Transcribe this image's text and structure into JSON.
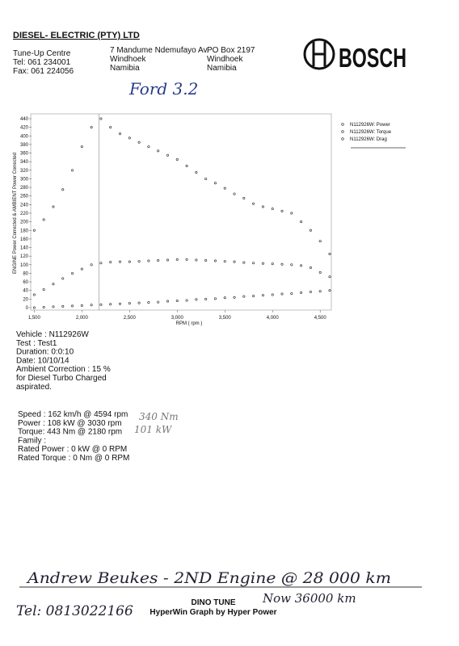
{
  "header": {
    "company": "DIESEL- ELECTRIC (PTY) LTD",
    "branch": "Tune-Up Centre",
    "tel": "Tel:  061 234001",
    "fax": "Fax: 061 224056",
    "address": [
      "7 Mandume Ndemufayo Av.",
      "Windhoek",
      "Namibia"
    ],
    "po_box": [
      "PO Box 2197",
      "Windhoek",
      "Namibia"
    ],
    "brand": "BOSCH"
  },
  "handwritten_title": "Ford 3.2",
  "chart_data": {
    "type": "scatter",
    "x_label": "RPM ( rpm )",
    "y_label": "ENGINE Power Corrected & AMBIENT Power Corrected",
    "x": [
      1500,
      1600,
      1700,
      1800,
      1900,
      2000,
      2100,
      2200,
      2300,
      2400,
      2500,
      2600,
      2700,
      2800,
      2900,
      3000,
      3100,
      3200,
      3300,
      3400,
      3500,
      3600,
      3700,
      3800,
      3900,
      4000,
      4100,
      4200,
      4300,
      4400,
      4500,
      4600
    ],
    "series": [
      {
        "name": "N112926W: Power",
        "color": "#222222",
        "values": [
          30,
          42,
          55,
          68,
          80,
          90,
          100,
          104,
          106,
          107,
          107,
          108,
          109,
          110,
          111,
          112,
          112,
          111,
          110,
          109,
          108,
          107,
          105,
          104,
          103,
          102,
          101,
          100,
          98,
          93,
          82,
          72
        ]
      },
      {
        "name": "N112926W: Torque",
        "color": "#222222",
        "values": [
          180,
          205,
          235,
          275,
          320,
          375,
          420,
          440,
          420,
          405,
          395,
          385,
          375,
          365,
          355,
          345,
          330,
          315,
          300,
          290,
          278,
          265,
          255,
          242,
          235,
          230,
          225,
          220,
          200,
          180,
          155,
          125
        ]
      },
      {
        "name": "N112926W: Drag",
        "color": "#222222",
        "values": [
          0,
          1,
          2,
          3,
          4,
          5,
          6,
          7,
          8,
          9,
          10,
          11,
          12,
          13,
          15,
          16,
          17,
          19,
          20,
          21,
          23,
          24,
          26,
          27,
          29,
          30,
          32,
          33,
          35,
          37,
          38,
          40
        ]
      }
    ],
    "cursor_x": 2180,
    "xlim": [
      1480,
      4600
    ],
    "ylim": [
      0,
      440
    ],
    "xticks": [
      {
        "value": 1500,
        "label": "1,500"
      },
      {
        "value": 2000,
        "label": "2,000"
      },
      {
        "value": 2500,
        "label": "2,500"
      },
      {
        "value": 3000,
        "label": "3,000"
      },
      {
        "value": 3500,
        "label": "3,500"
      },
      {
        "value": 4000,
        "label": "4,000"
      },
      {
        "value": 4500,
        "label": "4,500"
      }
    ],
    "yticks": [
      0,
      20,
      40,
      60,
      80,
      100,
      120,
      140,
      160,
      180,
      200,
      220,
      240,
      260,
      280,
      300,
      320,
      340,
      360,
      380,
      400,
      420,
      440
    ],
    "legend": "right"
  },
  "test_info": [
    "Vehicle : N112926W",
    "Test    : Test1",
    "Duration: 0:0:10",
    "Date: 10/10/14",
    "Ambient Correction : 15 %",
    " for Diesel Turbo Charged",
    "aspirated."
  ],
  "results": [
    "Speed : 162 km/h @ 4594 rpm",
    "Power : 108 kW @ 3030 rpm",
    "Torque: 443 Nm @ 2180 rpm",
    "Family :",
    "Rated Power : 0 kW @ 0 RPM",
    "Rated Torque : 0 Nm @ 0 RPM"
  ],
  "handwritten_notes": [
    "340 Nm",
    "101 kW"
  ],
  "handwritten_footer": {
    "line1": "Andrew Beukes - 2ND Engine @ 28 000 km",
    "line2": "Now 36000 km",
    "phone": "Tel: 0813022166"
  },
  "footer": {
    "title": "DINO TUNE",
    "credit": "HyperWin Graph by Hyper Power"
  }
}
